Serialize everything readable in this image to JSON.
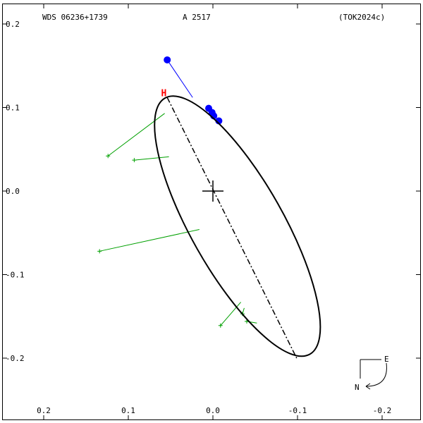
{
  "header": {
    "left": "WDS 06236+1739",
    "center": "A  2517",
    "right": "(TOK2024c)"
  },
  "compass": {
    "east": "E",
    "north": "N"
  },
  "node_label": "H",
  "chart_data": {
    "type": "scatter",
    "title": "WDS 06236+1739   A  2517   (TOK2024c)",
    "xlim": [
      0.25,
      -0.25
    ],
    "ylim": [
      -0.27,
      0.2
    ],
    "x_ticks": [
      0.2,
      0.1,
      0.0,
      -0.1,
      -0.2
    ],
    "x_tick_labels": [
      "0.2",
      "0.1",
      "0.0",
      "-0.1",
      "-0.2"
    ],
    "y_ticks": [
      0.2,
      0.1,
      0.0,
      -0.1,
      -0.2
    ],
    "y_tick_labels": [
      "0.2",
      "0.1",
      "0.0",
      "-0.1",
      "-0.2"
    ],
    "grid": false,
    "primary": [
      0,
      0
    ],
    "orbit_ellipse": {
      "center": [
        -0.029,
        -0.042
      ],
      "semi_axes": [
        0.175,
        0.055
      ],
      "rotation_deg": -60.5
    },
    "line_of_nodes": {
      "from": [
        0.054,
        0.112
      ],
      "to": [
        -0.099,
        -0.2
      ]
    },
    "node_marker": [
      0.058,
      0.117
    ],
    "green_observations": [
      {
        "obs": [
          0.124,
          0.042
        ],
        "fit": [
          0.057,
          0.093
        ]
      },
      {
        "obs": [
          0.093,
          0.037
        ],
        "fit": [
          0.052,
          0.041
        ]
      },
      {
        "obs": [
          0.134,
          -0.072
        ],
        "fit": [
          0.016,
          -0.046
        ]
      },
      {
        "obs": [
          -0.009,
          -0.161
        ],
        "fit": [
          -0.033,
          -0.133
        ]
      },
      {
        "obs": [
          -0.035,
          -0.147
        ],
        "fit": [
          -0.037,
          -0.14
        ]
      },
      {
        "obs": [
          -0.04,
          -0.156
        ],
        "fit": [
          -0.052,
          -0.158
        ]
      }
    ],
    "blue_observations": [
      {
        "obs": [
          0.054,
          0.157
        ],
        "fit": [
          0.024,
          0.112
        ]
      },
      {
        "obs": [
          0.005,
          0.099
        ],
        "fit": [
          0.006,
          0.1
        ]
      },
      {
        "obs": [
          0.001,
          0.094
        ],
        "fit": [
          0.002,
          0.094
        ]
      },
      {
        "obs": [
          -0.001,
          0.09
        ],
        "fit": [
          -0.001,
          0.09
        ]
      },
      {
        "obs": [
          -0.007,
          0.084
        ],
        "fit": [
          -0.007,
          0.084
        ]
      }
    ],
    "colors": {
      "orbit": "#000000",
      "green": "#00a000",
      "blue": "#0000ff",
      "node": "#ff0000"
    }
  }
}
